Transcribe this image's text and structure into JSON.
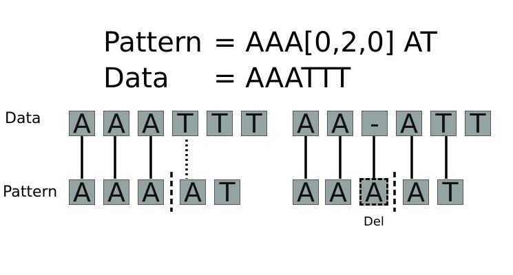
{
  "header": {
    "pattern_key": "Pattern",
    "pattern_value": "= AAA[0,2,0] AT",
    "data_key": "Data",
    "data_value": "= AAATTT"
  },
  "labels": {
    "data_row": "Data",
    "pattern_row": "Pattern",
    "deletion": "Del"
  },
  "left_alignment": {
    "data": [
      "A",
      "A",
      "A",
      "T",
      "T",
      "T"
    ],
    "pattern": [
      "A",
      "A",
      "A",
      "A",
      "T"
    ]
  },
  "right_alignment": {
    "data": [
      "A",
      "A",
      "-",
      "A",
      "T",
      "T"
    ],
    "pattern": [
      "A",
      "A",
      "A",
      "A",
      "T"
    ]
  },
  "colors": {
    "box_fill": "#94a3a3",
    "box_border": "#555555",
    "line": "#000000"
  }
}
